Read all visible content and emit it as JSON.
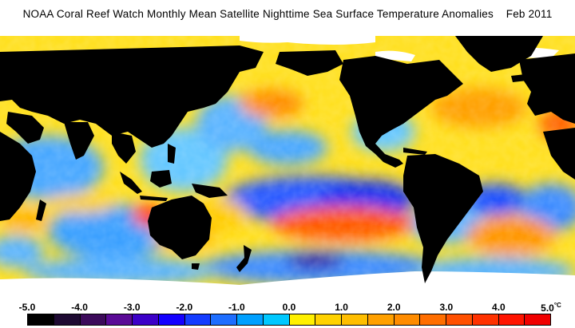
{
  "title": "NOAA Coral Reef Watch Monthly Mean Satellite Nighttime Sea Surface Temperature Anomalies",
  "date": "Feb 2011",
  "legend": {
    "unit": "°C",
    "min": -5.0,
    "max": 5.0,
    "step": 0.5,
    "tick_labels": [
      "-5.0",
      "-4.0",
      "-3.0",
      "-2.0",
      "-1.0",
      "0.0",
      "1.0",
      "2.0",
      "3.0",
      "4.0",
      "5.0"
    ],
    "tick_values": [
      -5,
      -4,
      -3,
      -2,
      -1,
      0,
      1,
      2,
      3,
      4,
      5
    ],
    "colors": [
      "#000000",
      "#1e0a32",
      "#3c0a5a",
      "#5a0a96",
      "#3c00c8",
      "#1400ff",
      "#143cff",
      "#1e6eff",
      "#00a0ff",
      "#00c8ff",
      "#fff000",
      "#ffd200",
      "#ffbe00",
      "#ffa000",
      "#ff8c00",
      "#ff6e00",
      "#ff5000",
      "#ff3200",
      "#ff1400",
      "#f00000"
    ]
  },
  "map": {
    "land_color": "#000000",
    "ice_color": "#ffffff"
  }
}
